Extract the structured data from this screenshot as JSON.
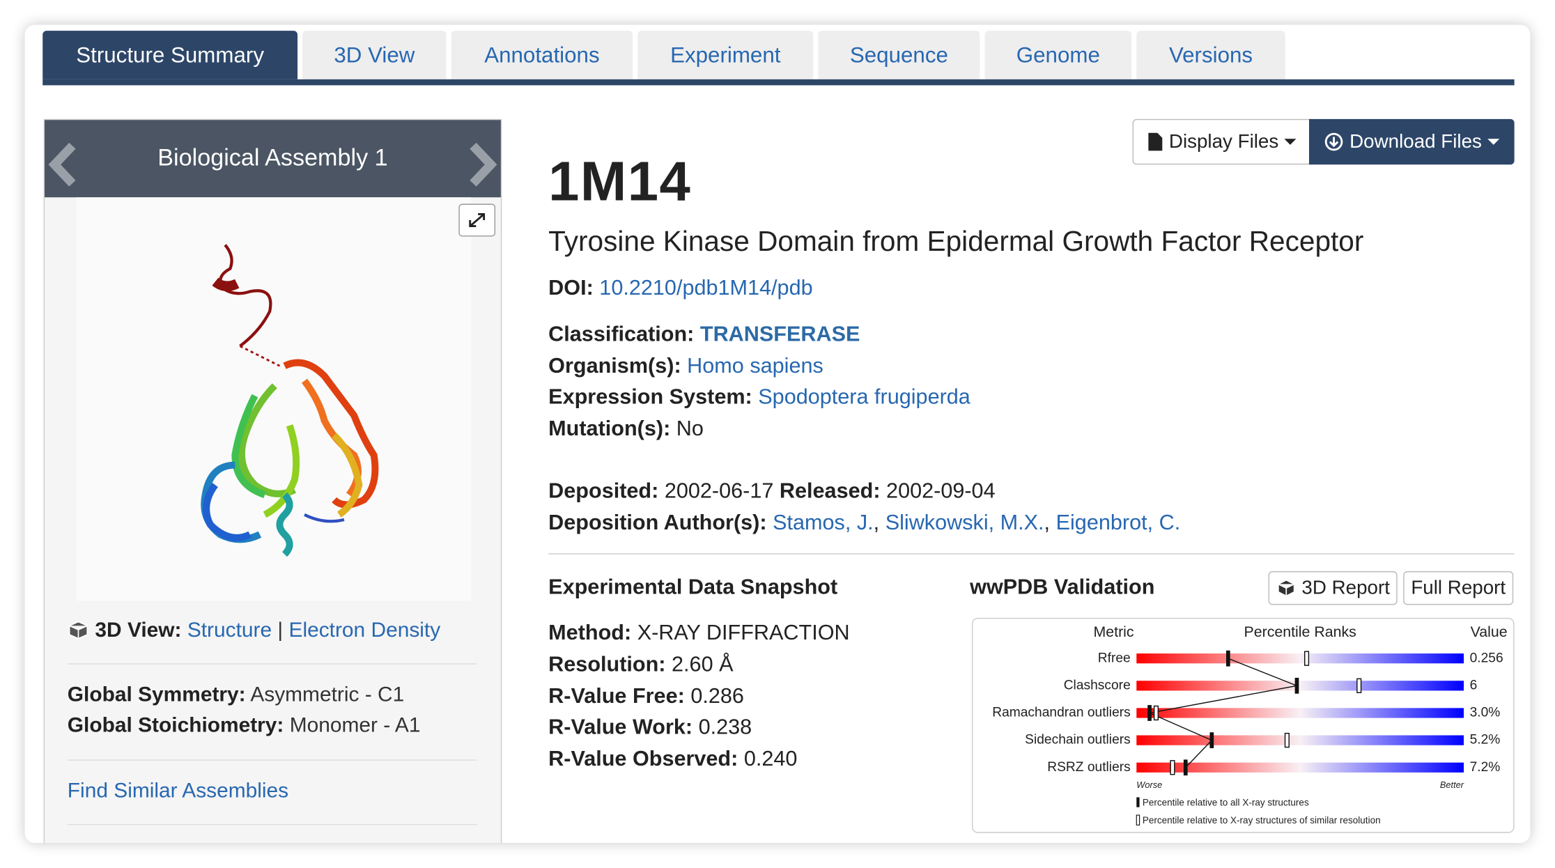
{
  "tabs": [
    "Structure Summary",
    "3D View",
    "Annotations",
    "Experiment",
    "Sequence",
    "Genome",
    "Versions"
  ],
  "assembly": {
    "title": "Biological Assembly 1",
    "view_label": "3D View:",
    "view_links": [
      "Structure",
      "Electron Density"
    ],
    "view_separator": "|",
    "symmetry_label": "Global Symmetry:",
    "symmetry": "Asymmetric - C1",
    "stoichiometry_label": "Global Stoichiometry:",
    "stoichiometry": "Monomer - A1",
    "find_similar": "Find Similar Assemblies"
  },
  "buttons": {
    "display": "Display Files",
    "download": "Download Files"
  },
  "header": {
    "id": "1M14",
    "title": "Tyrosine Kinase Domain from Epidermal Growth Factor Receptor",
    "doi_label": "DOI:",
    "doi": "10.2210/pdb1M14/pdb"
  },
  "fields": [
    {
      "label": "Classification:",
      "value": "TRANSFERASE"
    },
    {
      "label": "Organism(s):",
      "value": "Homo sapiens"
    },
    {
      "label": "Expression System:",
      "value": "Spodoptera frugiperda"
    },
    {
      "label": "Mutation(s):",
      "value": "No"
    }
  ],
  "dates": {
    "deposited_label": "Deposited:",
    "deposited": "2002-06-17",
    "released_label": "Released:",
    "released": "2002-09-04"
  },
  "authors": {
    "label": "Deposition Author(s):",
    "names": [
      "Stamos, J.",
      "Sliwkowski, M.X.",
      "Eigenbrot, C."
    ],
    "separator": ","
  },
  "snapshot": {
    "title": "Experimental Data Snapshot",
    "rows": [
      {
        "label": "Method:",
        "value": "X-RAY DIFFRACTION"
      },
      {
        "label": "Resolution:",
        "value": "2.60 Å"
      },
      {
        "label": "R-Value Free:",
        "value": "0.286"
      },
      {
        "label": "R-Value Work:",
        "value": "0.238"
      },
      {
        "label": "R-Value Observed:",
        "value": "0.240"
      }
    ]
  },
  "validation": {
    "title": "wwPDB Validation",
    "report_3d": "3D Report",
    "report_full": "Full Report",
    "headers": [
      "Metric",
      "Percentile Ranks",
      "Value"
    ],
    "metrics": [
      {
        "name": "Rfree",
        "value": "0.256",
        "percentile_all": 28,
        "percentile_similar": 52
      },
      {
        "name": "Clashscore",
        "value": "6",
        "percentile_all": 49,
        "percentile_similar": 68
      },
      {
        "name": "Ramachandran outliers",
        "value": "3.0%",
        "percentile_all": 4,
        "percentile_similar": 6
      },
      {
        "name": "Sidechain outliers",
        "value": "5.2%",
        "percentile_all": 23,
        "percentile_similar": 46
      },
      {
        "name": "RSRZ outliers",
        "value": "7.2%",
        "percentile_all": 15,
        "percentile_similar": 11
      }
    ],
    "worse": "Worse",
    "better": "Better",
    "legend": [
      "Percentile relative to all X-ray structures",
      "Percentile relative to X-ray structures of similar resolution"
    ]
  }
}
